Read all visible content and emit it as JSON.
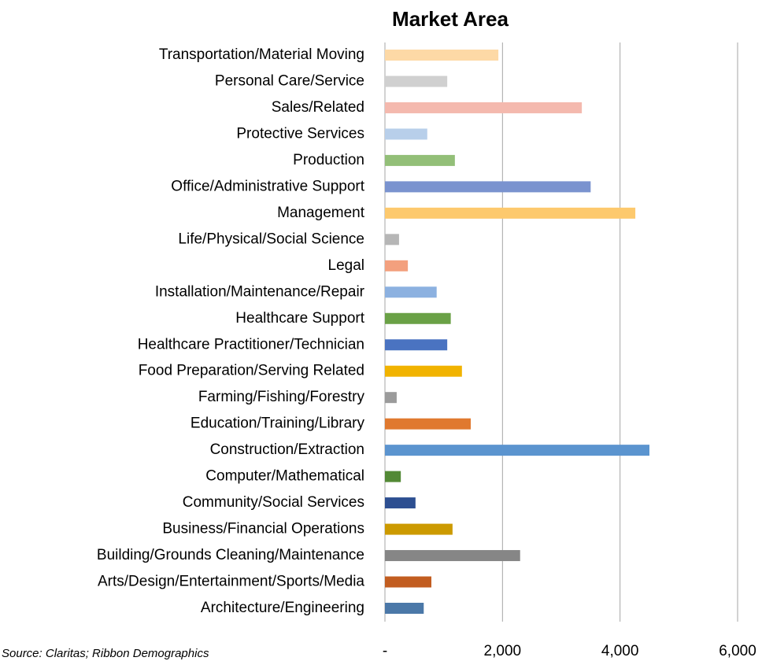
{
  "chart_data": {
    "type": "barh",
    "title": "Market Area",
    "categories": [
      "Transportation/Material Moving",
      "Personal Care/Service",
      "Sales/Related",
      "Protective Services",
      "Production",
      "Office/Administrative Support",
      "Management",
      "Life/Physical/Social Science",
      "Legal",
      "Installation/Maintenance/Repair",
      "Healthcare Support",
      "Healthcare Practitioner/Technician",
      "Food Preparation/Serving Related",
      "Farming/Fishing/Forestry",
      "Education/Training/Library",
      "Construction/Extraction",
      "Computer/Mathematical",
      "Community/Social Services",
      "Business/Financial Operations",
      "Building/Grounds Cleaning/Maintenance",
      "Arts/Design/Entertainment/Sports/Media",
      "Architecture/Engineering"
    ],
    "values": [
      1930,
      1060,
      3350,
      720,
      1190,
      3500,
      4260,
      240,
      390,
      880,
      1120,
      1060,
      1310,
      200,
      1460,
      4500,
      270,
      520,
      1150,
      2300,
      790,
      660
    ],
    "colors": [
      "#fdd9a6",
      "#d0d0d0",
      "#f4b9ae",
      "#b8cfea",
      "#93bf78",
      "#7a93cf",
      "#fdc96d",
      "#b6b6b6",
      "#f3a07e",
      "#8cb1e0",
      "#6aa146",
      "#4a73c1",
      "#f1b300",
      "#9b9b9b",
      "#e0792f",
      "#5b94cf",
      "#538935",
      "#2d4f91",
      "#cc9a00",
      "#868686",
      "#c25d20",
      "#4b78a8"
    ],
    "xlim": [
      0,
      6000
    ],
    "xticks": [
      {
        "value": 0,
        "label": "-"
      },
      {
        "value": 2000,
        "label": "2,000"
      },
      {
        "value": 4000,
        "label": "4,000"
      },
      {
        "value": 6000,
        "label": "6,000"
      }
    ],
    "grid": true,
    "source": "Source: Claritas; Ribbon Demographics"
  }
}
